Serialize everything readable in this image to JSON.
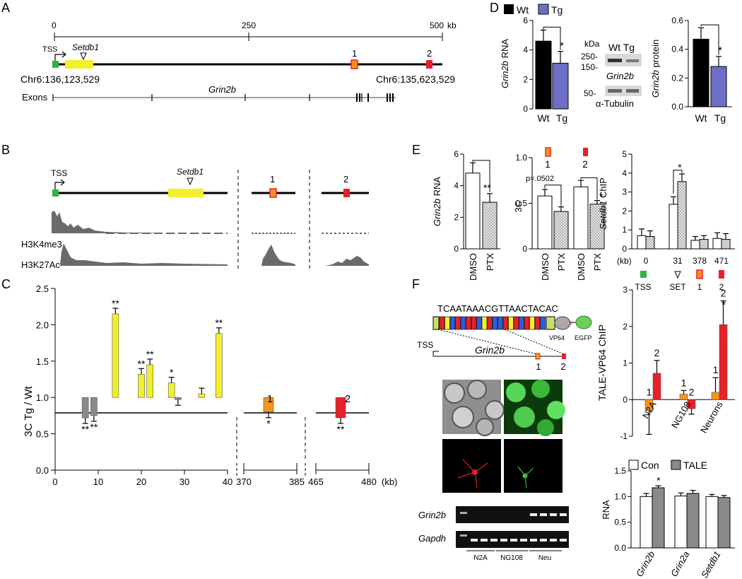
{
  "panels": {
    "A": "A",
    "B": "B",
    "C": "C",
    "D": "D",
    "E": "E",
    "F": "F"
  },
  "colors": {
    "yellow": "#f3ef2a",
    "green": "#2db34a",
    "orange": "#f7941d",
    "red": "#e8202a",
    "blue": "#6b6fc6",
    "gray": "#8a8a8a",
    "stipple": "#d9d9d9"
  },
  "panelA": {
    "scale_ticks": [
      "0",
      "250",
      "500"
    ],
    "scale_unit": "kb",
    "tss": "TSS",
    "gene_label": "Setdb1",
    "left_coord": "Chr6:136,123,529",
    "right_coord": "Chr6:135,623,529",
    "site1": "1",
    "site2": "2",
    "exons_label": "Exons",
    "grin2b": "Grin2b"
  },
  "panelB": {
    "tss": "TSS",
    "gene_label": "Setdb1",
    "site1": "1",
    "site2": "2",
    "track1": "H3K4me3",
    "track2": "H3K27Ac"
  },
  "panelD": {
    "ylabel_gene": "Grin2b",
    "ylabel_suffix": " RNA",
    "legend": [
      "Wt",
      "Tg"
    ],
    "wb_kda": "kDa",
    "wb_markers": [
      "250-",
      "150-",
      "50-"
    ],
    "wb_lanes": "Wt Tg",
    "wb_label1": "Grin2b",
    "wb_label2": "α-Tubulin",
    "ylabel2_gene": "Grin2b",
    "ylabel2_suffix": " protein",
    "xlabels": [
      "Wt",
      "Tg"
    ],
    "sig": "*"
  },
  "panelE": {
    "ylabel1_gene": "Grin2b",
    "ylabel1_suffix": " RNA",
    "ylabel2": "3C",
    "ylabel3_gene": "Setdb1",
    "ylabel3_suffix": " ChIP",
    "xlabels": [
      "DMSO",
      "PTX"
    ],
    "pval": "p=.0502",
    "site1": "1",
    "site2": "2",
    "chip_x": [
      "0",
      "31",
      "378",
      "471"
    ],
    "kb": "(kb)",
    "chip_sites": [
      "TSS",
      "SET",
      "1",
      "2"
    ],
    "sig1": "**",
    "sig": "*"
  },
  "panelC": {
    "ylabel": "3C Tg / Wt",
    "unit": "(kb)",
    "xticks1": [
      "0",
      "10",
      "20",
      "30",
      "40"
    ],
    "xticks2": [
      "370",
      "385"
    ],
    "xticks3": [
      "465",
      "480"
    ],
    "site1": "1",
    "site2": "2"
  },
  "panelF": {
    "sequence": "TCAATAAACGTTAACTACAC",
    "vp64": "VP64",
    "egfp": "EGFP",
    "tss": "TSS",
    "grin2b": "Grin2b",
    "site1": "1",
    "site2": "2",
    "gel_label1": "Grin2b",
    "gel_label2": "Gapdh",
    "gel_lanes": [
      "N2A",
      "NG108",
      "Neu"
    ],
    "chip_ylabel": "TALE-VP64 ChIP",
    "chip_x": [
      "N2A",
      "NG108",
      "Neurons"
    ],
    "rna_legend": [
      "Con",
      "TALE"
    ],
    "rna_ylabel": "RNA",
    "rna_x": [
      "Grin2b",
      "Grin2a",
      "Setdb1"
    ]
  },
  "chart_data": [
    {
      "type": "bar",
      "panel": "C",
      "ylabel": "3C Tg / Wt",
      "xlabel": "(kb)",
      "ylim": [
        0,
        2.5
      ],
      "series": [
        {
          "x": 7,
          "value": 0.72,
          "color": "gray",
          "sig": "**"
        },
        {
          "x": 9,
          "value": 0.75,
          "color": "gray",
          "sig": "**"
        },
        {
          "x": 14,
          "value": 2.15,
          "color": "yellow",
          "sig": "**"
        },
        {
          "x": 20,
          "value": 1.32,
          "color": "yellow",
          "sig": "**"
        },
        {
          "x": 22,
          "value": 1.45,
          "color": "yellow",
          "sig": "**"
        },
        {
          "x": 27,
          "value": 1.2,
          "color": "yellow",
          "sig": "*"
        },
        {
          "x": 28.5,
          "value": 0.97,
          "color": "gray",
          "sig": ""
        },
        {
          "x": 34,
          "value": 1.05,
          "color": "yellow",
          "sig": ""
        },
        {
          "x": 38,
          "value": 1.88,
          "color": "yellow",
          "sig": "**"
        },
        {
          "x": 377,
          "value": 0.8,
          "color": "orange",
          "sig": "*"
        },
        {
          "x": 472,
          "value": 0.72,
          "color": "red",
          "sig": "**"
        }
      ]
    },
    {
      "type": "bar",
      "panel": "D-RNA",
      "ylim": [
        0,
        6
      ],
      "yticks": [
        0,
        2,
        4,
        6
      ],
      "categories": [
        "Wt",
        "Tg"
      ],
      "values": [
        4.6,
        3.1
      ],
      "errors": [
        0.75,
        0.8
      ]
    },
    {
      "type": "bar",
      "panel": "D-protein",
      "ylim": [
        0,
        0.6
      ],
      "yticks": [
        0.0,
        0.2,
        0.4,
        0.6
      ],
      "categories": [
        "Wt",
        "Tg"
      ],
      "values": [
        0.47,
        0.28
      ],
      "errors": [
        0.08,
        0.07
      ]
    },
    {
      "type": "bar",
      "panel": "E-RNA",
      "ylim": [
        0,
        6
      ],
      "yticks": [
        0,
        2,
        4,
        6
      ],
      "categories": [
        "DMSO",
        "PTX"
      ],
      "values": [
        4.8,
        2.95
      ],
      "errors": [
        0.65,
        0.55
      ]
    },
    {
      "type": "bar",
      "panel": "E-3C",
      "ylim": [
        0,
        1.0
      ],
      "yticks": [
        0,
        0.5,
        1.0
      ],
      "categories": [
        "DMSO",
        "PTX",
        "DMSO",
        "PTX"
      ],
      "values": [
        0.58,
        0.41,
        0.68,
        0.49
      ],
      "errors": [
        0.07,
        0.05,
        0.07,
        0.04
      ]
    },
    {
      "type": "bar",
      "panel": "E-ChIP",
      "ylim": [
        0,
        5
      ],
      "yticks": [
        0,
        1,
        2,
        3,
        4,
        5
      ],
      "categories": [
        "0",
        "31",
        "378",
        "471"
      ],
      "series": [
        {
          "name": "DMSO",
          "values": [
            0.7,
            2.35,
            0.45,
            0.55
          ],
          "errors": [
            0.35,
            0.4,
            0.2,
            0.3
          ]
        },
        {
          "name": "PTX",
          "values": [
            0.65,
            3.55,
            0.5,
            0.5
          ],
          "errors": [
            0.3,
            0.4,
            0.2,
            0.3
          ]
        }
      ]
    },
    {
      "type": "bar",
      "panel": "F-ChIP",
      "ylim": [
        -1,
        3
      ],
      "yticks": [
        -1,
        0,
        1,
        2,
        3
      ],
      "categories": [
        "N2A",
        "NG108",
        "Neurons"
      ],
      "series": [
        {
          "name": "1",
          "values": [
            -0.3,
            0.15,
            0.2
          ],
          "errors": [
            0.65,
            0.1,
            0.4
          ],
          "color": "orange"
        },
        {
          "name": "2",
          "values": [
            0.72,
            -0.25,
            2.05
          ],
          "errors": [
            0.35,
            0.15,
            0.65
          ],
          "color": "red"
        }
      ]
    },
    {
      "type": "bar",
      "panel": "F-RNA",
      "ylim": [
        0,
        1.5
      ],
      "yticks": [
        0.0,
        0.5,
        1.0,
        1.5
      ],
      "categories": [
        "Grin2b",
        "Grin2a",
        "Setdb1"
      ],
      "series": [
        {
          "name": "Con",
          "values": [
            1.0,
            1.01,
            1.0
          ],
          "errors": [
            0.06,
            0.06,
            0.04
          ]
        },
        {
          "name": "TALE",
          "values": [
            1.17,
            1.06,
            0.98
          ],
          "errors": [
            0.04,
            0.06,
            0.04
          ]
        }
      ]
    }
  ]
}
